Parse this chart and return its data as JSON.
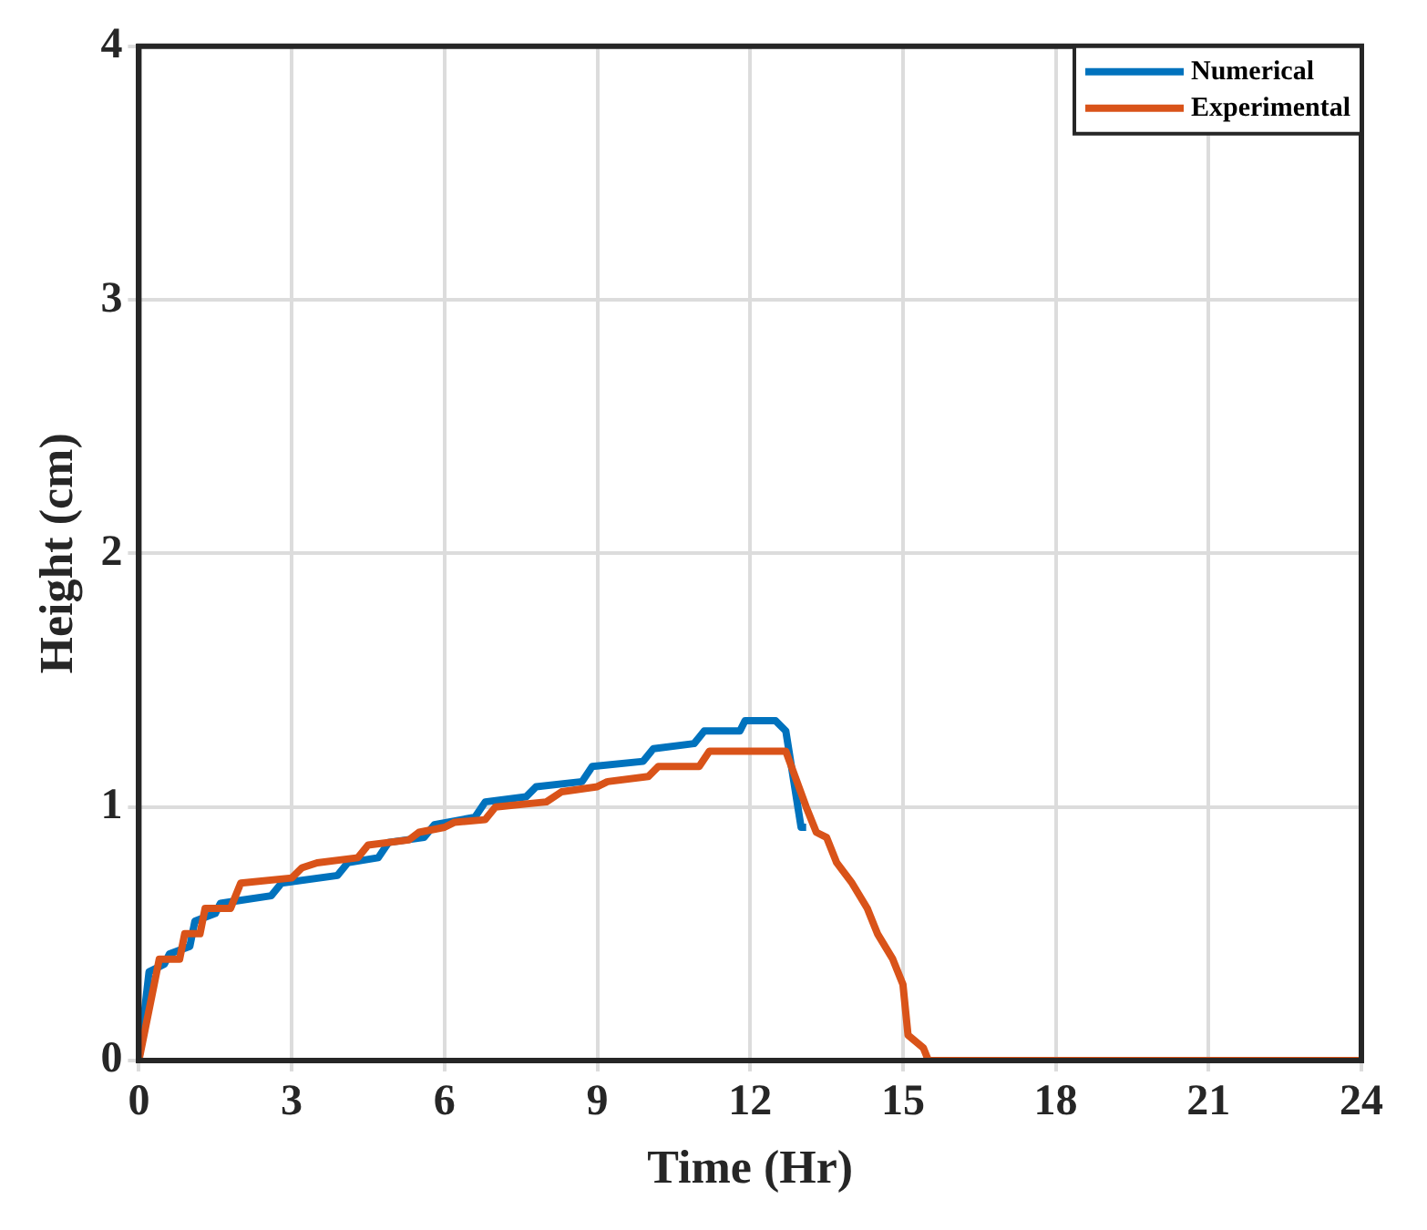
{
  "chart_data": {
    "type": "line",
    "xlabel": "Time (Hr)",
    "ylabel": "Height (cm)",
    "xlim": [
      0,
      24
    ],
    "xticks": [
      0,
      3,
      6,
      9,
      12,
      15,
      18,
      21,
      24
    ],
    "ylim": [
      0,
      4
    ],
    "yticks": [
      0,
      1,
      2,
      3,
      4
    ],
    "grid": true,
    "legend": "top right",
    "marker": "none",
    "line_style": "solid",
    "series": [
      {
        "name": "Numerical",
        "color": "#0072bd",
        "x": [
          0,
          0.2,
          0.5,
          0.6,
          1,
          1.1,
          1.5,
          1.6,
          2.6,
          2.8,
          3.9,
          4.1,
          4.7,
          4.9,
          5.6,
          5.8,
          6.6,
          6.8,
          7.6,
          7.8,
          8.7,
          8.9,
          9.9,
          10.1,
          10.9,
          11.1,
          11.8,
          11.9,
          12.5,
          12.7,
          13,
          13.1
        ],
        "values": [
          0,
          0.35,
          0.38,
          0.42,
          0.45,
          0.55,
          0.58,
          0.62,
          0.65,
          0.7,
          0.73,
          0.78,
          0.8,
          0.86,
          0.88,
          0.93,
          0.96,
          1.02,
          1.04,
          1.08,
          1.1,
          1.16,
          1.18,
          1.23,
          1.25,
          1.3,
          1.3,
          1.34,
          1.34,
          1.3,
          0.92,
          0.92
        ]
      },
      {
        "name": "Experimental",
        "color": "#d95319",
        "x": [
          0,
          0.4,
          0.8,
          0.9,
          1.2,
          1.3,
          1.8,
          2,
          3,
          3.2,
          3.5,
          4.3,
          4.5,
          5.3,
          5.5,
          6,
          6.2,
          6.8,
          7,
          8,
          8.3,
          9,
          9.2,
          10,
          10.2,
          11,
          11.2,
          12.7,
          13.1,
          13.3,
          13.5,
          13.7,
          14,
          14.3,
          14.5,
          14.8,
          15,
          15.1,
          15.4,
          15.5,
          24
        ],
        "values": [
          0,
          0.4,
          0.4,
          0.5,
          0.5,
          0.6,
          0.6,
          0.7,
          0.72,
          0.76,
          0.78,
          0.8,
          0.85,
          0.87,
          0.9,
          0.92,
          0.94,
          0.95,
          1,
          1.02,
          1.06,
          1.08,
          1.1,
          1.12,
          1.16,
          1.16,
          1.22,
          1.22,
          1,
          0.9,
          0.88,
          0.78,
          0.7,
          0.6,
          0.5,
          0.4,
          0.3,
          0.1,
          0.05,
          0,
          0
        ]
      }
    ]
  }
}
